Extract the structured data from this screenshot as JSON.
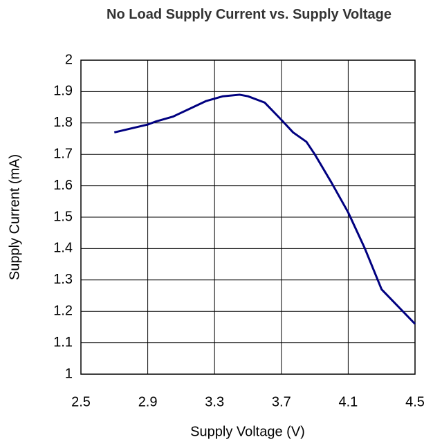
{
  "chart_data": {
    "type": "line",
    "title": "No Load Supply Current vs. Supply Voltage",
    "x_label": "Supply Voltage (V)",
    "y_label": "Supply Current (mA)",
    "series": [
      {
        "name": "Supply Current",
        "color": "#000080",
        "x": [
          2.7,
          2.9,
          2.95,
          3.05,
          3.15,
          3.25,
          3.35,
          3.45,
          3.5,
          3.6,
          3.7,
          3.77,
          3.85,
          3.9,
          4.0,
          4.1,
          4.2,
          4.3,
          4.5
        ],
        "values": [
          1.77,
          1.795,
          1.805,
          1.82,
          1.845,
          1.87,
          1.885,
          1.89,
          1.885,
          1.865,
          1.81,
          1.77,
          1.74,
          1.7,
          1.61,
          1.515,
          1.4,
          1.27,
          1.16
        ]
      }
    ],
    "xlim": [
      2.5,
      4.5
    ],
    "xticks": [
      2.5,
      2.9,
      3.3,
      3.7,
      4.1,
      4.5
    ],
    "ylim": [
      1,
      2
    ],
    "yticks": [
      1,
      1.1,
      1.2,
      1.3,
      1.4,
      1.5,
      1.6,
      1.7,
      1.8,
      1.9,
      2
    ],
    "grid": true
  }
}
